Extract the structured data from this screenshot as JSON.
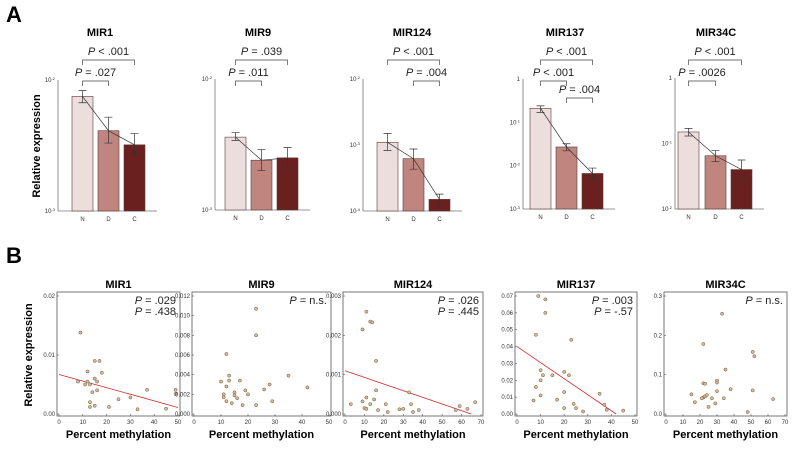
{
  "panels": {
    "a": "A",
    "b": "B"
  },
  "colors": {
    "N": "#eddede",
    "D": "#c0857f",
    "C": "#6b2020",
    "fit": "#d42a2a",
    "point_fill": "#d9b98f",
    "point_stroke": "#6b5a4a"
  },
  "chart_data": [
    {
      "type": "bar",
      "panel": "A",
      "title": "MIR1",
      "ylabel": "Relative expression",
      "yscale": "log",
      "ylim": [
        0.001,
        0.01
      ],
      "yticks": [
        {
          "base": "10",
          "exp": "-3",
          "value": 0.001
        },
        {
          "base": "10",
          "exp": "-2",
          "value": 0.01
        }
      ],
      "categories": [
        "N",
        "D",
        "C"
      ],
      "values": [
        0.0075,
        0.0041,
        0.0032
      ],
      "err_low": [
        0.0067,
        0.0033,
        0.0027
      ],
      "err_high": [
        0.0083,
        0.0052,
        0.0039
      ],
      "comparisons": [
        {
          "label": "P < .001",
          "from": "N",
          "to": "C",
          "level": 1
        },
        {
          "label": "P = .027",
          "from": "N",
          "to": "D",
          "level": 2
        }
      ]
    },
    {
      "type": "bar",
      "panel": "A",
      "title": "MIR9",
      "ylabel": "",
      "yscale": "log",
      "ylim": [
        0.001,
        0.01
      ],
      "yticks": [
        {
          "base": "10",
          "exp": "-3",
          "value": 0.001
        },
        {
          "base": "10",
          "exp": "-2",
          "value": 0.01
        }
      ],
      "categories": [
        "N",
        "D",
        "C"
      ],
      "values": [
        0.0036,
        0.0024,
        0.0025
      ],
      "err_low": [
        0.0034,
        0.002,
        0.0021
      ],
      "err_high": [
        0.0039,
        0.0029,
        0.003
      ],
      "comparisons": [
        {
          "label": "P = .039",
          "from": "N",
          "to": "C",
          "level": 1
        },
        {
          "label": "P = .011",
          "from": "N",
          "to": "D",
          "level": 2
        }
      ]
    },
    {
      "type": "bar",
      "panel": "A",
      "title": "MIR124",
      "ylabel": "",
      "yscale": "log",
      "ylim": [
        0.0001,
        0.01
      ],
      "yticks": [
        {
          "base": "10",
          "exp": "-4",
          "value": 0.0001
        },
        {
          "base": "10",
          "exp": "-3",
          "value": 0.001
        },
        {
          "base": "10",
          "exp": "-2",
          "value": 0.01
        }
      ],
      "categories": [
        "N",
        "D",
        "C"
      ],
      "values": [
        0.0011,
        0.00062,
        0.00015
      ],
      "err_low": [
        0.00083,
        0.00043,
        0.00012
      ],
      "err_high": [
        0.0015,
        0.00087,
        0.00018
      ],
      "comparisons": [
        {
          "label": "P < .001",
          "from": "N",
          "to": "C",
          "level": 1
        },
        {
          "label": "P = .004",
          "from": "D",
          "to": "C",
          "level": 2
        }
      ]
    },
    {
      "type": "bar",
      "panel": "A",
      "title": "MIR137",
      "ylabel": "",
      "yscale": "log",
      "ylim": [
        0.001,
        1
      ],
      "yticks": [
        {
          "base": "10",
          "exp": "-3",
          "value": 0.001
        },
        {
          "base": "10",
          "exp": "-2",
          "value": 0.01
        },
        {
          "base": "10",
          "exp": "-1",
          "value": 0.1
        },
        {
          "base": "1",
          "exp": "",
          "value": 1
        }
      ],
      "categories": [
        "N",
        "D",
        "C"
      ],
      "values": [
        0.21,
        0.027,
        0.0066
      ],
      "err_low": [
        0.17,
        0.022,
        0.0048
      ],
      "err_high": [
        0.24,
        0.032,
        0.0088
      ],
      "comparisons": [
        {
          "label": "P < .001",
          "from": "N",
          "to": "C",
          "level": 1
        },
        {
          "label": "P < .001",
          "from": "N",
          "to": "D",
          "level": 2
        },
        {
          "label": "P = .004",
          "from": "D",
          "to": "C",
          "level": 3
        }
      ]
    },
    {
      "type": "bar",
      "panel": "A",
      "title": "MIR34C",
      "ylabel": "",
      "yscale": "log",
      "ylim": [
        0.01,
        1
      ],
      "yticks": [
        {
          "base": "10",
          "exp": "-2",
          "value": 0.01
        },
        {
          "base": "10",
          "exp": "-1",
          "value": 0.1
        },
        {
          "base": "1",
          "exp": "",
          "value": 1
        }
      ],
      "categories": [
        "N",
        "D",
        "C"
      ],
      "values": [
        0.15,
        0.065,
        0.04
      ],
      "err_low": [
        0.13,
        0.053,
        0.028
      ],
      "err_high": [
        0.17,
        0.078,
        0.056
      ],
      "comparisons": [
        {
          "label": "P < .001",
          "from": "N",
          "to": "C",
          "level": 1
        },
        {
          "label": "P = .0026",
          "from": "N",
          "to": "D",
          "level": 2
        }
      ]
    },
    {
      "type": "scatter",
      "panel": "B",
      "title": "MIR1",
      "xlabel": "Percent methylation",
      "ylabel": "Relative expression",
      "xlim": [
        0,
        50
      ],
      "ylim": [
        0,
        0.02
      ],
      "xticks": [
        0,
        10,
        20,
        30,
        40,
        50
      ],
      "yticks": [
        "0.00",
        "0.01",
        "0.02"
      ],
      "annotations": [
        "P = .029",
        "P = .438"
      ],
      "fit": [
        [
          0,
          0.0067
        ],
        [
          50,
          0.0011
        ]
      ],
      "points": [
        [
          9,
          0.0138
        ],
        [
          15,
          0.009
        ],
        [
          17,
          0.009
        ],
        [
          12,
          0.0072
        ],
        [
          18,
          0.007
        ],
        [
          8,
          0.0055
        ],
        [
          11,
          0.005
        ],
        [
          12,
          0.0055
        ],
        [
          13,
          0.005
        ],
        [
          15,
          0.006
        ],
        [
          16,
          0.0055
        ],
        [
          14,
          0.0037
        ],
        [
          16,
          0.004
        ],
        [
          13,
          0.002
        ],
        [
          13,
          0.0012
        ],
        [
          15,
          0.0014
        ],
        [
          21,
          0.0012
        ],
        [
          25,
          0.0025
        ],
        [
          30,
          0.0028
        ],
        [
          33,
          0.0008
        ],
        [
          37,
          0.0041
        ],
        [
          45,
          0.0009
        ],
        [
          49,
          0.0041
        ],
        [
          49,
          0.0034
        ]
      ]
    },
    {
      "type": "scatter",
      "panel": "B",
      "title": "MIR9",
      "xlabel": "Percent methylation",
      "ylabel": "",
      "xlim": [
        0,
        50
      ],
      "ylim": [
        0,
        0.012
      ],
      "xticks": [
        0,
        10,
        20,
        30,
        40,
        50
      ],
      "yticks": [
        "0.000",
        "0.002",
        "0.004",
        "0.006",
        "0.008",
        "0.010",
        "0.012"
      ],
      "annotations": [
        "P = n.s."
      ],
      "fit": null,
      "points": [
        [
          23,
          0.0107
        ],
        [
          23,
          0.008
        ],
        [
          12,
          0.0061
        ],
        [
          10,
          0.0033
        ],
        [
          13,
          0.0039
        ],
        [
          13,
          0.0034
        ],
        [
          11,
          0.002
        ],
        [
          11,
          0.0017
        ],
        [
          12,
          0.0028
        ],
        [
          12,
          0.0013
        ],
        [
          14,
          0.0011
        ],
        [
          15,
          0.0022
        ],
        [
          15,
          0.0019
        ],
        [
          16,
          0.0016
        ],
        [
          17,
          0.0034
        ],
        [
          18,
          0.0009
        ],
        [
          19,
          0.0024
        ],
        [
          20,
          0.002
        ],
        [
          23,
          0.0009
        ],
        [
          26,
          0.0025
        ],
        [
          28,
          0.003
        ],
        [
          29,
          0.0013
        ],
        [
          35,
          0.0039
        ],
        [
          42,
          0.0027
        ]
      ]
    },
    {
      "type": "scatter",
      "panel": "B",
      "title": "MIR124",
      "xlabel": "Percent methylation",
      "ylabel": "",
      "xlim": [
        0,
        70
      ],
      "ylim": [
        0,
        0.003
      ],
      "xticks": [
        0,
        10,
        20,
        30,
        40,
        50,
        60,
        70
      ],
      "yticks": [
        "0.000",
        "0.001",
        "0.002",
        "0.003"
      ],
      "annotations": [
        "P = .026",
        "P = .445"
      ],
      "fit": [
        [
          0,
          0.0011
        ],
        [
          65,
          0
        ]
      ],
      "points": [
        [
          11,
          0.0026
        ],
        [
          13,
          0.00235
        ],
        [
          14,
          0.00233
        ],
        [
          9,
          0.00215
        ],
        [
          16,
          0.00135
        ],
        [
          16,
          0.0006
        ],
        [
          11,
          0.00042
        ],
        [
          15,
          0.00037
        ],
        [
          9,
          0.00032
        ],
        [
          3,
          0.00025
        ],
        [
          10,
          0.00015
        ],
        [
          11,
          0.00013
        ],
        [
          13,
          0.00025
        ],
        [
          17,
          0.0001
        ],
        [
          21,
          0.00025
        ],
        [
          22,
          5e-05
        ],
        [
          28,
          0.00012
        ],
        [
          30,
          0.00013
        ],
        [
          33,
          0.00055
        ],
        [
          34,
          0.00025
        ],
        [
          35,
          5e-05
        ],
        [
          38,
          0.0001
        ],
        [
          57,
          0.0001
        ],
        [
          59,
          0.0002
        ],
        [
          63,
          0.00013
        ],
        [
          67,
          0.0003
        ]
      ]
    },
    {
      "type": "scatter",
      "panel": "B",
      "title": "MIR137",
      "xlabel": "Percent methylation",
      "ylabel": "",
      "xlim": [
        0,
        50
      ],
      "ylim": [
        0,
        0.07
      ],
      "xticks": [
        0,
        10,
        20,
        30,
        40,
        50
      ],
      "yticks": [
        "0.00",
        "0.01",
        "0.02",
        "0.03",
        "0.04",
        "0.05",
        "0.06",
        "0.07"
      ],
      "annotations": [
        "P = .003",
        "P = -.57"
      ],
      "fit": [
        [
          0,
          0.04
        ],
        [
          42,
          0
        ]
      ],
      "points": [
        [
          9,
          0.07
        ],
        [
          12,
          0.068
        ],
        [
          12,
          0.06
        ],
        [
          8,
          0.047
        ],
        [
          23,
          0.044
        ],
        [
          10,
          0.026
        ],
        [
          11,
          0.023
        ],
        [
          15,
          0.023
        ],
        [
          20,
          0.025
        ],
        [
          22,
          0.023
        ],
        [
          10,
          0.02
        ],
        [
          8,
          0.016
        ],
        [
          10,
          0.011
        ],
        [
          7,
          0.008
        ],
        [
          17,
          0.0085
        ],
        [
          20,
          0.013
        ],
        [
          20,
          0.0035
        ],
        [
          24,
          0.006
        ],
        [
          25,
          0.0035
        ],
        [
          28,
          0.0015
        ],
        [
          35,
          0.012
        ],
        [
          37,
          0.0055
        ],
        [
          38,
          0.0025
        ],
        [
          45,
          0.002
        ]
      ]
    },
    {
      "type": "scatter",
      "panel": "B",
      "title": "MIR34C",
      "xlabel": "Percent methylation",
      "ylabel": "",
      "xlim": [
        0,
        70
      ],
      "ylim": [
        0,
        0.3
      ],
      "xticks": [
        0,
        10,
        20,
        30,
        40,
        50,
        60,
        70
      ],
      "yticks": [
        "0.0",
        "0.1",
        "0.2",
        "0.3"
      ],
      "annotations": [
        "P = n.s."
      ],
      "fit": null,
      "points": [
        [
          33,
          0.255
        ],
        [
          22,
          0.178
        ],
        [
          51,
          0.158
        ],
        [
          52,
          0.147
        ],
        [
          35,
          0.113
        ],
        [
          30,
          0.085
        ],
        [
          30,
          0.08
        ],
        [
          22,
          0.078
        ],
        [
          23,
          0.077
        ],
        [
          38,
          0.063
        ],
        [
          51,
          0.06
        ],
        [
          30,
          0.058
        ],
        [
          15,
          0.05
        ],
        [
          22,
          0.042
        ],
        [
          23,
          0.045
        ],
        [
          24,
          0.048
        ],
        [
          21,
          0.04
        ],
        [
          27,
          0.04
        ],
        [
          34,
          0.04
        ],
        [
          63,
          0.038
        ],
        [
          17,
          0.03
        ],
        [
          29,
          0.027
        ],
        [
          25,
          0.018
        ],
        [
          48,
          0.005
        ]
      ]
    }
  ]
}
